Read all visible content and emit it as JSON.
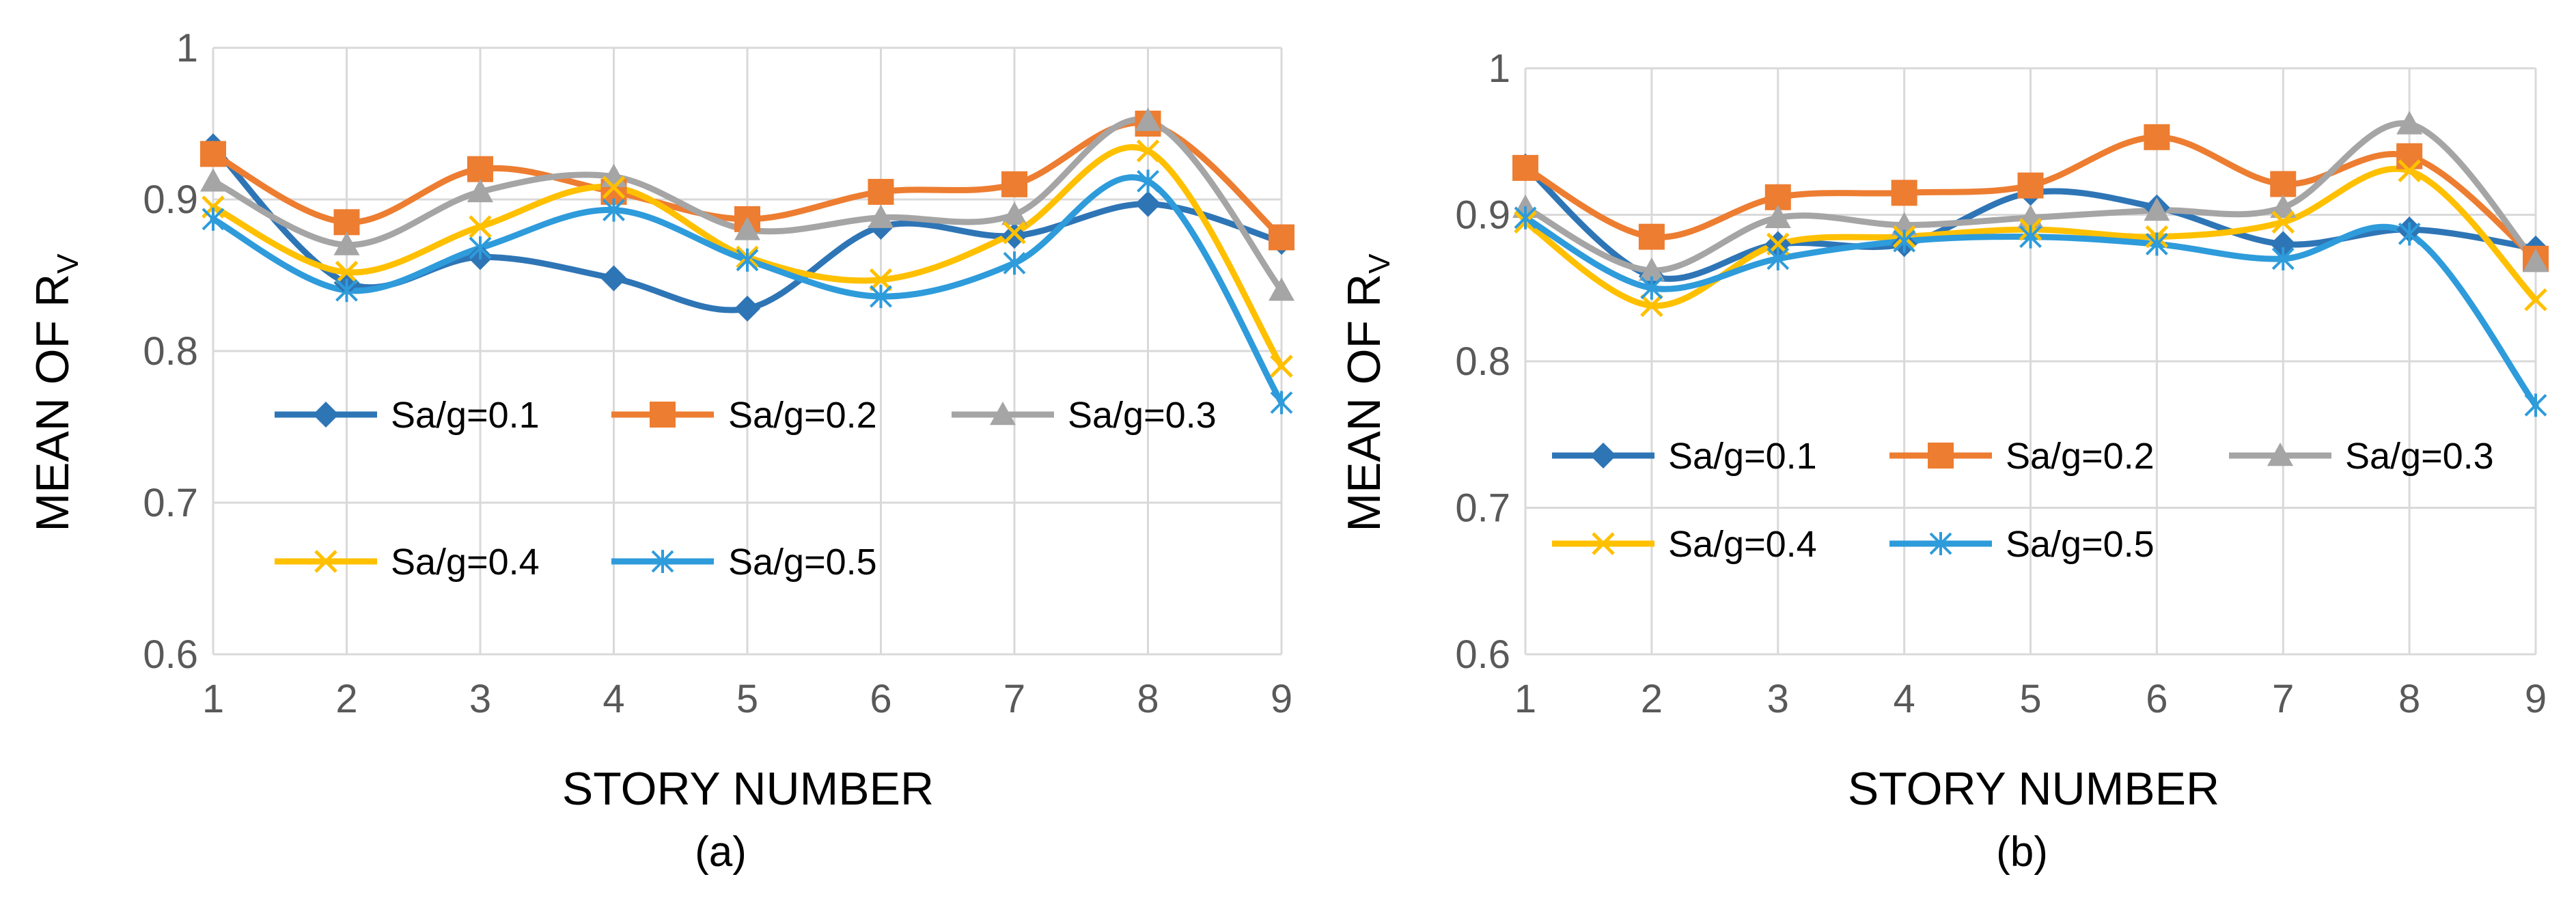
{
  "chart_data": [
    {
      "type": "line",
      "caption": "(a)",
      "xlabel": "STORY NUMBER",
      "ylabel_main": "MEAN OF R",
      "ylabel_sub": "V",
      "x": [
        1,
        2,
        3,
        4,
        5,
        6,
        7,
        8,
        9
      ],
      "xticks": [
        "1",
        "2",
        "3",
        "4",
        "5",
        "6",
        "7",
        "8",
        "9"
      ],
      "ylim": [
        0.6,
        1.0
      ],
      "yticks": [
        "0.6",
        "0.7",
        "0.8",
        "0.9",
        "1"
      ],
      "grid": true,
      "series": [
        {
          "name": "Sa/g=0.1",
          "color": "#2E75B6",
          "marker": "diamond",
          "values": [
            0.935,
            0.845,
            0.862,
            0.848,
            0.828,
            0.882,
            0.876,
            0.897,
            0.872
          ]
        },
        {
          "name": "Sa/g=0.2",
          "color": "#ED7D31",
          "marker": "square",
          "values": [
            0.93,
            0.885,
            0.92,
            0.905,
            0.887,
            0.905,
            0.91,
            0.95,
            0.875
          ]
        },
        {
          "name": "Sa/g=0.3",
          "color": "#A5A5A5",
          "marker": "triangle",
          "values": [
            0.912,
            0.87,
            0.905,
            0.915,
            0.88,
            0.888,
            0.89,
            0.952,
            0.84
          ]
        },
        {
          "name": "Sa/g=0.4",
          "color": "#FFC000",
          "marker": "x",
          "values": [
            0.895,
            0.852,
            0.882,
            0.908,
            0.862,
            0.847,
            0.878,
            0.932,
            0.79
          ]
        },
        {
          "name": "Sa/g=0.5",
          "color": "#2E9BDB",
          "marker": "star",
          "values": [
            0.887,
            0.84,
            0.868,
            0.893,
            0.86,
            0.836,
            0.858,
            0.912,
            0.766
          ]
        }
      ]
    },
    {
      "type": "line",
      "caption": "(b)",
      "xlabel": "STORY NUMBER",
      "ylabel_main": "MEAN OF R",
      "ylabel_sub": "V",
      "x": [
        1,
        2,
        3,
        4,
        5,
        6,
        7,
        8,
        9
      ],
      "xticks": [
        "1",
        "2",
        "3",
        "4",
        "5",
        "6",
        "7",
        "8",
        "9"
      ],
      "ylim": [
        0.6,
        1.0
      ],
      "yticks": [
        "0.6",
        "0.7",
        "0.8",
        "0.9",
        "1"
      ],
      "grid": true,
      "series": [
        {
          "name": "Sa/g=0.1",
          "color": "#2E75B6",
          "marker": "diamond",
          "values": [
            0.933,
            0.858,
            0.88,
            0.88,
            0.915,
            0.905,
            0.88,
            0.89,
            0.877
          ]
        },
        {
          "name": "Sa/g=0.2",
          "color": "#ED7D31",
          "marker": "square",
          "values": [
            0.932,
            0.885,
            0.912,
            0.915,
            0.92,
            0.953,
            0.921,
            0.94,
            0.87
          ]
        },
        {
          "name": "Sa/g=0.3",
          "color": "#A5A5A5",
          "marker": "triangle",
          "values": [
            0.905,
            0.862,
            0.898,
            0.893,
            0.898,
            0.903,
            0.905,
            0.962,
            0.868
          ]
        },
        {
          "name": "Sa/g=0.4",
          "color": "#FFC000",
          "marker": "x",
          "values": [
            0.895,
            0.838,
            0.88,
            0.885,
            0.89,
            0.885,
            0.895,
            0.93,
            0.842
          ]
        },
        {
          "name": "Sa/g=0.5",
          "color": "#2E9BDB",
          "marker": "star",
          "values": [
            0.898,
            0.85,
            0.87,
            0.882,
            0.885,
            0.88,
            0.87,
            0.887,
            0.77
          ]
        }
      ]
    }
  ]
}
